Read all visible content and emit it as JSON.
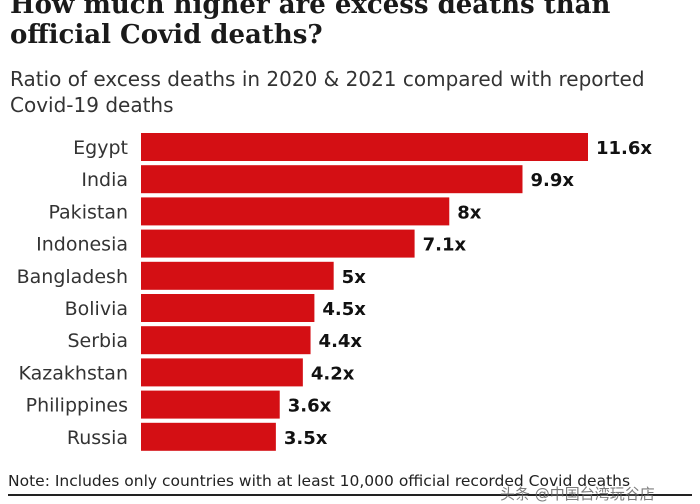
{
  "header": {
    "title": "How much higher are excess deaths than official Covid deaths?",
    "subtitle": "Ratio of excess deaths in 2020 & 2021 compared with reported Covid-19 deaths"
  },
  "chart_data": {
    "type": "bar",
    "orientation": "horizontal",
    "title": "How much higher are excess deaths than official Covid deaths?",
    "subtitle": "Ratio of excess deaths in 2020 & 2021 compared with reported Covid-19 deaths",
    "categories": [
      "Egypt",
      "India",
      "Pakistan",
      "Indonesia",
      "Bangladesh",
      "Bolivia",
      "Serbia",
      "Kazakhstan",
      "Philippines",
      "Russia"
    ],
    "values": [
      11.6,
      9.9,
      8,
      7.1,
      5,
      4.5,
      4.4,
      4.2,
      3.6,
      3.5
    ],
    "value_labels": [
      "11.6x",
      "9.9x",
      "8x",
      "7.1x",
      "5x",
      "4.5x",
      "4.4x",
      "4.2x",
      "3.6x",
      "3.5x"
    ],
    "bar_color": "#d40f14",
    "xlabel": "",
    "ylabel": "",
    "xlim": [
      0,
      11.6
    ]
  },
  "footer": {
    "note": "Note: Includes only countries with at least 10,000 official recorded Covid deaths",
    "watermark": "头条 @中国台湾玩谷店"
  }
}
